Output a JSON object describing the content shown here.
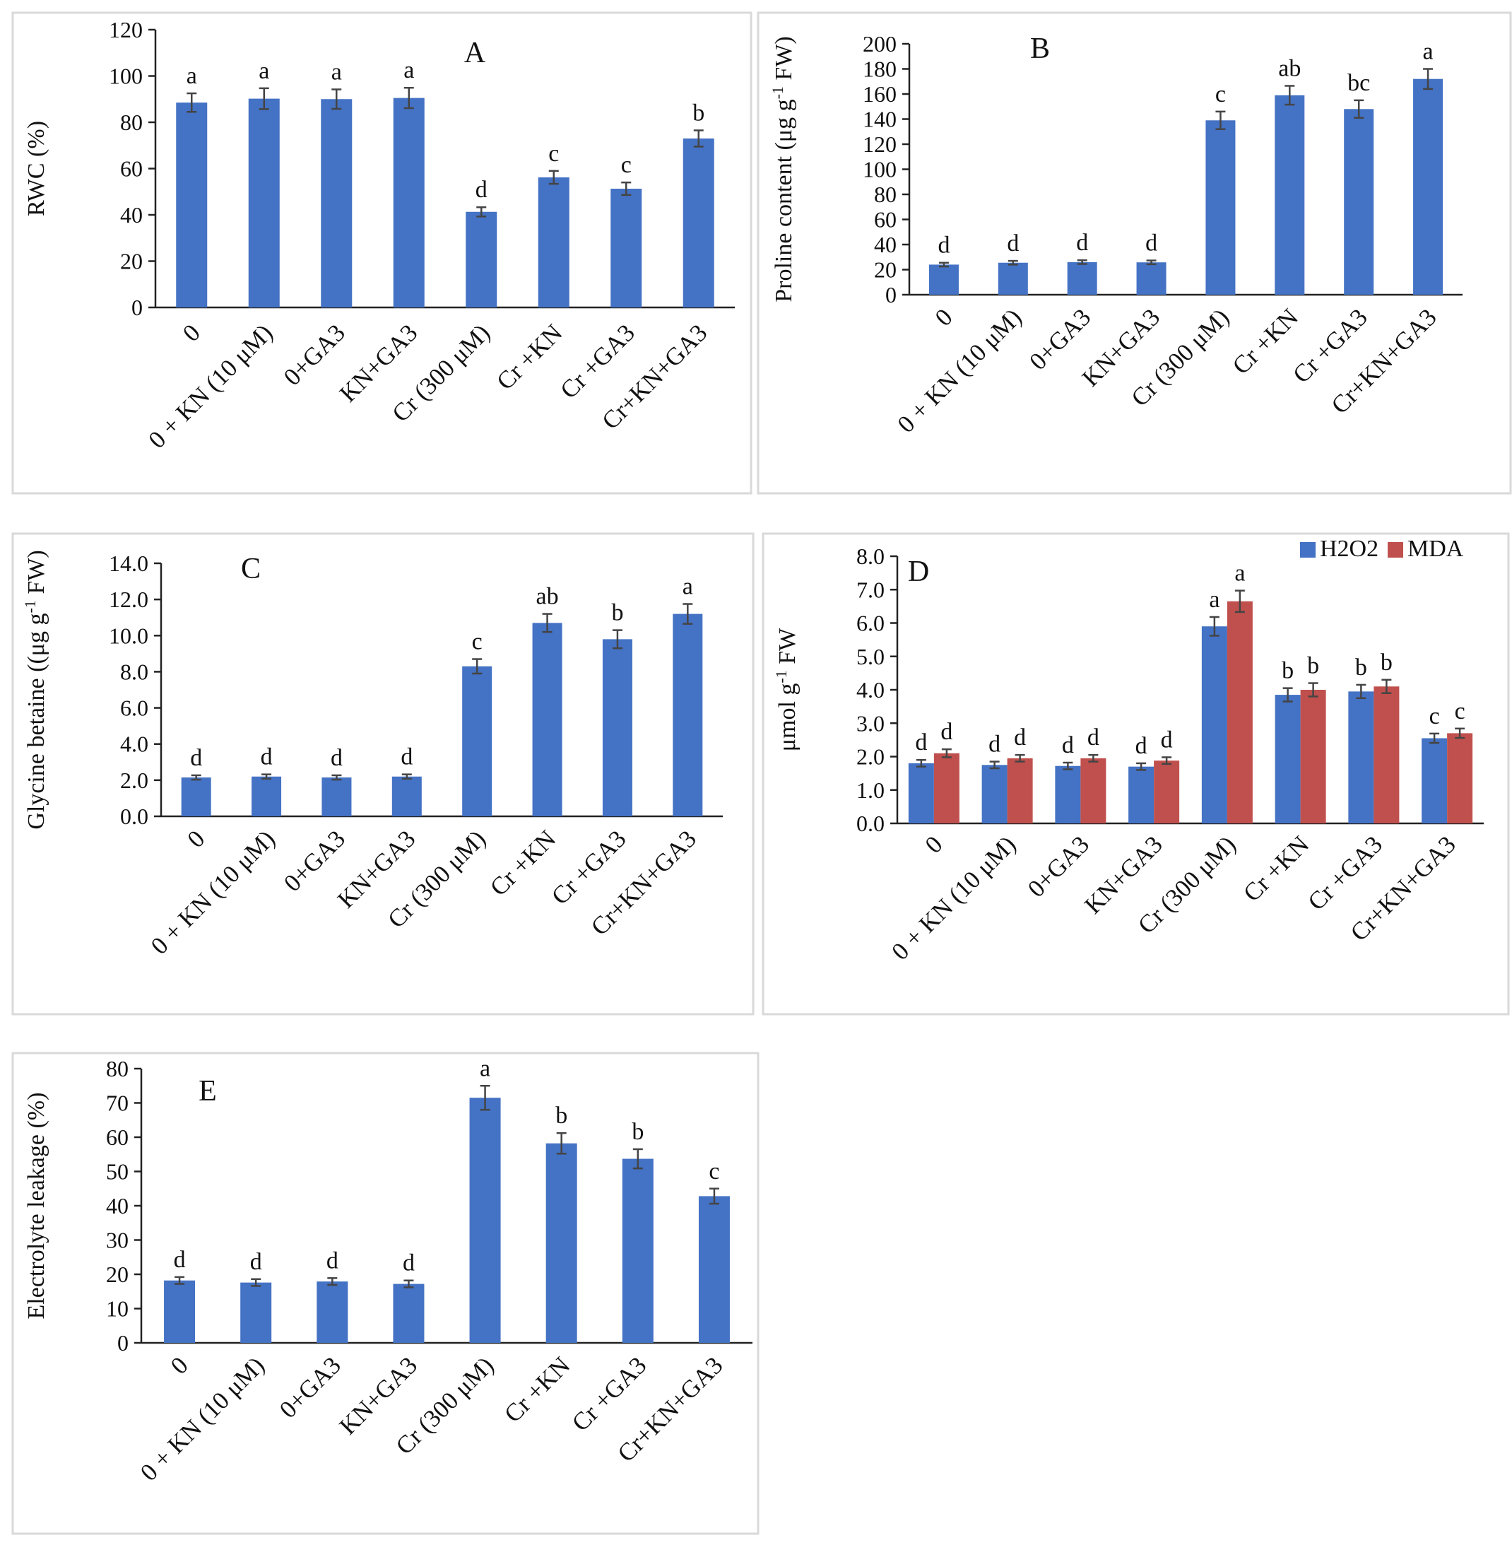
{
  "colors": {
    "h2o2": "#4472c4",
    "mda": "#c0504d",
    "single": "#4472c4"
  },
  "chart_data": [
    {
      "id": "A",
      "type": "bar",
      "title": "A",
      "xlabel": "",
      "ylabel": "RWC (%)",
      "ylim": [
        0,
        120
      ],
      "yticks": [
        "0",
        "20",
        "40",
        "60",
        "80",
        "100",
        "120"
      ],
      "categories": [
        "0",
        "0 + KN (10 μM)",
        "0+GA3",
        "KN+GA3",
        "Cr (300 μM)",
        "Cr +KN",
        "Cr +GA3",
        "Cr+KN+GA3"
      ],
      "series": [
        {
          "name": "RWC",
          "color": "#4472c4",
          "values": [
            88.5,
            90.2,
            90.0,
            90.5,
            41.3,
            56.2,
            51.3,
            73.0
          ],
          "errors": [
            4.0,
            4.5,
            4.2,
            4.4,
            2.0,
            2.8,
            2.7,
            3.5
          ],
          "letters": [
            "a",
            "a",
            "a",
            "a",
            "d",
            "c",
            "c",
            "b"
          ]
        }
      ]
    },
    {
      "id": "B",
      "type": "bar",
      "title": "B",
      "xlabel": "",
      "ylabel": "Proline content (μg g-1 FW)",
      "ylabel_parts": [
        "Proline content (μg g",
        "-1",
        " FW)"
      ],
      "ylim": [
        0,
        200
      ],
      "yticks": [
        "0",
        "20",
        "40",
        "60",
        "80",
        "100",
        "120",
        "140",
        "160",
        "180",
        "200"
      ],
      "categories": [
        "0",
        "0 + KN (10 μM)",
        "0+GA3",
        "KN+GA3",
        "Cr (300 μM)",
        "Cr +KN",
        "Cr +GA3",
        "Cr+KN+GA3"
      ],
      "series": [
        {
          "name": "Proline",
          "color": "#4472c4",
          "values": [
            24.0,
            25.5,
            26.0,
            25.8,
            139.0,
            159.0,
            148.0,
            172.0
          ],
          "errors": [
            1.5,
            1.5,
            1.5,
            1.5,
            7.0,
            7.5,
            7.0,
            8.0
          ],
          "letters": [
            "d",
            "d",
            "d",
            "d",
            "c",
            "ab",
            "bc",
            "a"
          ]
        }
      ]
    },
    {
      "id": "C",
      "type": "bar",
      "title": "C",
      "xlabel": "",
      "ylabel": "Glycine betaine ((μg g-1 FW)",
      "ylabel_parts": [
        "Glycine betaine ((μg g",
        "-1",
        " FW)"
      ],
      "ylim": [
        0,
        14
      ],
      "yticks": [
        "0.0",
        "2.0",
        "4.0",
        "6.0",
        "8.0",
        "10.0",
        "12.0",
        "14.0"
      ],
      "categories": [
        "0",
        "0 + KN (10 μM)",
        "0+GA3",
        "KN+GA3",
        "Cr (300 μM)",
        "Cr +KN",
        "Cr +GA3",
        "Cr+KN+GA3"
      ],
      "series": [
        {
          "name": "Glycine betaine",
          "color": "#4472c4",
          "values": [
            2.15,
            2.2,
            2.15,
            2.2,
            8.3,
            10.7,
            9.8,
            11.2
          ],
          "errors": [
            0.12,
            0.12,
            0.12,
            0.12,
            0.4,
            0.5,
            0.5,
            0.55
          ],
          "letters": [
            "d",
            "d",
            "d",
            "d",
            "c",
            "ab",
            "b",
            "a"
          ]
        }
      ]
    },
    {
      "id": "D",
      "type": "bar",
      "title": "D",
      "xlabel": "",
      "ylabel": "μmol g-1 FW",
      "ylabel_parts": [
        "μmol g",
        "-1",
        " FW"
      ],
      "ylim": [
        0,
        8
      ],
      "yticks": [
        "0.0",
        "1.0",
        "2.0",
        "3.0",
        "4.0",
        "5.0",
        "6.0",
        "7.0",
        "8.0"
      ],
      "legend": [
        "H2O2",
        "MDA"
      ],
      "legend_position": "top-right",
      "categories": [
        "0",
        "0 + KN (10 μM)",
        "0+GA3",
        "KN+GA3",
        "Cr (300 μM)",
        "Cr +KN",
        "Cr +GA3",
        "Cr+KN+GA3"
      ],
      "series": [
        {
          "name": "H2O2",
          "color": "#4472c4",
          "values": [
            1.8,
            1.75,
            1.72,
            1.7,
            5.9,
            3.85,
            3.95,
            2.55
          ],
          "errors": [
            0.1,
            0.1,
            0.1,
            0.1,
            0.28,
            0.2,
            0.2,
            0.14
          ],
          "letters": [
            "d",
            "d",
            "d",
            "d",
            "a",
            "b",
            "b",
            "c"
          ]
        },
        {
          "name": "MDA",
          "color": "#c0504d",
          "values": [
            2.1,
            1.95,
            1.95,
            1.88,
            6.65,
            4.0,
            4.1,
            2.7
          ],
          "errors": [
            0.12,
            0.1,
            0.1,
            0.1,
            0.32,
            0.2,
            0.2,
            0.14
          ],
          "letters": [
            "d",
            "d",
            "d",
            "d",
            "a",
            "b",
            "b",
            "c"
          ]
        }
      ]
    },
    {
      "id": "E",
      "type": "bar",
      "title": "E",
      "xlabel": "",
      "ylabel": "Electrolyte leakage (%)",
      "ylim": [
        0,
        80
      ],
      "yticks": [
        "0",
        "10",
        "20",
        "30",
        "40",
        "50",
        "60",
        "70",
        "80"
      ],
      "categories": [
        "0",
        "0 + KN (10 μM)",
        "0+GA3",
        "KN+GA3",
        "Cr (300 μM)",
        "Cr +KN",
        "Cr +GA3",
        "Cr+KN+GA3"
      ],
      "series": [
        {
          "name": "Electrolyte leakage",
          "color": "#4472c4",
          "values": [
            18.2,
            17.6,
            17.9,
            17.2,
            71.5,
            58.2,
            53.7,
            42.8
          ],
          "errors": [
            1.0,
            1.0,
            1.0,
            1.0,
            3.5,
            3.0,
            2.8,
            2.2
          ],
          "letters": [
            "d",
            "d",
            "d",
            "d",
            "a",
            "b",
            "b",
            "c"
          ]
        }
      ]
    }
  ]
}
